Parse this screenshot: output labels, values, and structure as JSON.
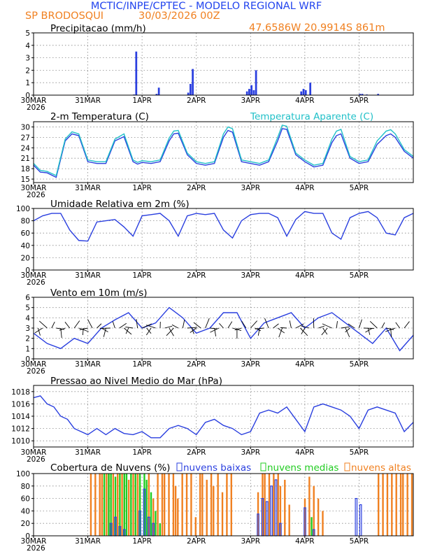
{
  "header": {
    "title": "MCTIC/INPE/CPTEC - MODELO REGIONAL WRF",
    "location": "SP BRODOSQUI",
    "run": "30/03/2026 00Z",
    "coords": "47.6586W 20.9914S 861m"
  },
  "colors": {
    "title_blue": "#2244ee",
    "orange": "#f08020",
    "line_blue": "#2a3fdf",
    "cyan": "#20c0c8",
    "green": "#22cc22",
    "bar_blue": "#2a3fdf"
  },
  "time_axis": {
    "hours": 144,
    "ticks": [
      {
        "hour": 0,
        "label": "30MAR",
        "year": "2026"
      },
      {
        "hour": 24,
        "label": "31MAR",
        "year": ""
      },
      {
        "hour": 48,
        "label": "1APR",
        "year": ""
      },
      {
        "hour": 72,
        "label": "2APR",
        "year": ""
      },
      {
        "hour": 96,
        "label": "3APR",
        "year": ""
      },
      {
        "hour": 120,
        "label": "4APR",
        "year": ""
      },
      {
        "hour": 144,
        "label": "5APR",
        "year": ""
      }
    ]
  },
  "chart_data": [
    {
      "id": "precip",
      "type": "bar",
      "title": "Precipitacao (mm/h)",
      "ylim": [
        0,
        5
      ],
      "yticks": [
        0,
        1,
        2,
        3,
        4,
        5
      ],
      "x": [
        44,
        45,
        54,
        55,
        68,
        69,
        70,
        94,
        95,
        96,
        97,
        98,
        118,
        119,
        120,
        122,
        144,
        145,
        147,
        152
      ],
      "values": [
        0.05,
        3.5,
        0.1,
        0.6,
        0.2,
        0.9,
        2.1,
        0.3,
        0.5,
        0.8,
        0.4,
        2.0,
        0.3,
        0.5,
        0.4,
        1.0,
        0.1,
        0.1,
        0.05,
        0.1
      ]
    },
    {
      "id": "temp",
      "type": "line",
      "title": "2-m Temperatura (C)",
      "legend": [
        "Temperatura Aparente (C)"
      ],
      "ylim": [
        14,
        31.5
      ],
      "yticks": [
        15,
        18,
        21,
        24,
        27,
        30
      ],
      "x": [
        0,
        3,
        6,
        10,
        14,
        17,
        20,
        24,
        28,
        32,
        36,
        40,
        44,
        46,
        48,
        52,
        56,
        60,
        62,
        64,
        68,
        72,
        76,
        80,
        84,
        86,
        88,
        92,
        96,
        100,
        104,
        108,
        110,
        112,
        116,
        120,
        124,
        128,
        132,
        134,
        136,
        140,
        144,
        148,
        152,
        156,
        158,
        160,
        164,
        168
      ],
      "series": [
        {
          "name": "Temperatura (C)",
          "values": [
            19,
            17,
            16.8,
            15.5,
            26,
            28,
            27.5,
            20,
            19.5,
            19.5,
            26,
            27.2,
            20,
            19.3,
            19.8,
            19.5,
            20,
            26,
            28,
            28.2,
            22,
            19.5,
            19,
            19.5,
            27,
            29,
            28.5,
            20,
            19.5,
            19,
            20,
            26,
            29.5,
            29.3,
            22,
            20,
            18.5,
            19,
            25.5,
            27.5,
            28,
            21,
            19.5,
            20,
            25,
            27.5,
            28,
            27,
            23,
            21
          ]
        },
        {
          "name": "Temperatura Aparente (C)",
          "values": [
            19.5,
            17.5,
            17.2,
            16,
            26.5,
            28.6,
            28,
            20.5,
            20,
            20,
            26.5,
            28,
            20.5,
            19.8,
            20.3,
            20,
            20.5,
            26.8,
            28.8,
            29,
            22.5,
            20,
            19.5,
            20,
            28,
            30,
            29.5,
            20.5,
            20,
            19.5,
            20.5,
            27,
            30.5,
            30.2,
            22.5,
            20.5,
            19,
            19.5,
            26.5,
            28.8,
            29.3,
            21.5,
            20,
            20.5,
            26,
            28.8,
            29.2,
            28,
            23.5,
            21.5
          ]
        }
      ]
    },
    {
      "id": "rh",
      "type": "line",
      "title": "Umidade Relativa em 2m (%)",
      "ylim": [
        0,
        100
      ],
      "yticks": [
        0,
        20,
        40,
        60,
        80,
        100
      ],
      "x": [
        0,
        4,
        8,
        12,
        16,
        20,
        24,
        28,
        32,
        36,
        40,
        44,
        48,
        52,
        56,
        60,
        64,
        68,
        72,
        76,
        80,
        84,
        88,
        92,
        96,
        100,
        104,
        108,
        112,
        116,
        120,
        124,
        128,
        132,
        136,
        140,
        144,
        148,
        152,
        156,
        160,
        164,
        168
      ],
      "series": [
        {
          "name": "UR",
          "values": [
            80,
            88,
            92,
            92,
            65,
            48,
            47,
            78,
            80,
            82,
            70,
            55,
            88,
            90,
            92,
            80,
            55,
            88,
            92,
            90,
            92,
            65,
            52,
            80,
            90,
            92,
            92,
            85,
            55,
            82,
            95,
            92,
            92,
            60,
            50,
            85,
            92,
            95,
            85,
            60,
            57,
            85,
            92
          ]
        }
      ]
    },
    {
      "id": "wind",
      "type": "line",
      "title": "Vento em 10m (m/s)",
      "ylim": [
        0,
        6
      ],
      "yticks": [
        0,
        1,
        2,
        3,
        4,
        5,
        6
      ],
      "x": [
        0,
        6,
        12,
        18,
        24,
        30,
        36,
        42,
        48,
        54,
        60,
        66,
        72,
        78,
        84,
        90,
        96,
        102,
        108,
        114,
        120,
        126,
        132,
        138,
        144,
        150,
        156,
        162,
        168
      ],
      "series": [
        {
          "name": "Vento (m/s)",
          "values": [
            2.5,
            1.5,
            1.0,
            2.0,
            1.5,
            3.0,
            3.8,
            4.5,
            3.0,
            3.5,
            5.0,
            4.0,
            2.5,
            3.0,
            4.5,
            4.5,
            2.0,
            3.5,
            4.0,
            4.5,
            3.0,
            4.0,
            4.5,
            3.5,
            2.5,
            1.5,
            3.0,
            0.8,
            2.3
          ]
        }
      ]
    },
    {
      "id": "pressure",
      "type": "line",
      "title": "Pressao ao Nivel Medio do Mar (hPa)",
      "ylim": [
        1009,
        1019
      ],
      "yticks": [
        1010,
        1012,
        1014,
        1016,
        1018
      ],
      "x": [
        0,
        3,
        6,
        9,
        12,
        15,
        18,
        21,
        24,
        28,
        32,
        36,
        40,
        44,
        48,
        52,
        56,
        60,
        64,
        68,
        72,
        76,
        80,
        84,
        88,
        92,
        96,
        100,
        104,
        108,
        112,
        116,
        120,
        124,
        128,
        132,
        136,
        140,
        144,
        148,
        152,
        156,
        160,
        164,
        168
      ],
      "series": [
        {
          "name": "PNMM",
          "values": [
            1017,
            1017.3,
            1016,
            1015.5,
            1014,
            1013.5,
            1012,
            1011.5,
            1011,
            1012,
            1011,
            1012,
            1011.2,
            1011,
            1011.5,
            1010.5,
            1010.5,
            1012,
            1012.5,
            1012,
            1011,
            1013,
            1013.5,
            1012.5,
            1012,
            1011,
            1011.5,
            1014.5,
            1015,
            1014.5,
            1015.5,
            1013.5,
            1011.5,
            1015.5,
            1016,
            1015.5,
            1015,
            1014,
            1012,
            1015,
            1015.5,
            1015,
            1014.5,
            1011.5,
            1013
          ]
        }
      ]
    },
    {
      "id": "clouds",
      "type": "bar",
      "title": "Cobertura de Nuvens (%)",
      "legend": [
        "nuvens baixas",
        "nuvens medias",
        "nuvens altas"
      ],
      "ylim": [
        0,
        100
      ],
      "yticks": [
        0,
        20,
        40,
        60,
        80,
        100
      ],
      "x_start": 24,
      "x_end": 168,
      "series": [
        {
          "name": "nuvens altas",
          "values": [
            0,
            100,
            0,
            100,
            0,
            100,
            100,
            0,
            100,
            100,
            0,
            100,
            0,
            100,
            0,
            100,
            100,
            0,
            90,
            0,
            100,
            0,
            100,
            80,
            0,
            70,
            0,
            100,
            0,
            60,
            0,
            100,
            0,
            100,
            100,
            0,
            100,
            0,
            100,
            80,
            60,
            0,
            100,
            0,
            100,
            0,
            100,
            0,
            30,
            0,
            100,
            100,
            0,
            90,
            0,
            100,
            80,
            0,
            100,
            0,
            70,
            0,
            100,
            0,
            100,
            0,
            0,
            0,
            0,
            0,
            0,
            0,
            0,
            0,
            0,
            0,
            70,
            0,
            100,
            100,
            0,
            100,
            0,
            100,
            0,
            100,
            80,
            0,
            90,
            0,
            50,
            0,
            0,
            0,
            0,
            0,
            0,
            60,
            0,
            95,
            0,
            80,
            0,
            60,
            0,
            40,
            0,
            0,
            0,
            0,
            0,
            0,
            0,
            0,
            0,
            0,
            0,
            0,
            0,
            0,
            0,
            0,
            0,
            0,
            0,
            0,
            0,
            0,
            0,
            0,
            100,
            0,
            100,
            0,
            100,
            0,
            100,
            0,
            100,
            0,
            100,
            100,
            0,
            100,
            0,
            100
          ]
        },
        {
          "name": "nuvens medias",
          "values": [
            0,
            0,
            0,
            0,
            0,
            0,
            0,
            100,
            0,
            100,
            100,
            0,
            95,
            0,
            100,
            0,
            100,
            100,
            0,
            100,
            0,
            100,
            0,
            100,
            0,
            100,
            90,
            0,
            70,
            0,
            40,
            0,
            20,
            0,
            0,
            0,
            0,
            0,
            0,
            0,
            0,
            0,
            0,
            0,
            0,
            0,
            0,
            0,
            0,
            0,
            0,
            0,
            0,
            0,
            0,
            0,
            0,
            0,
            0,
            0,
            0,
            0,
            0,
            0,
            0,
            0,
            0,
            0,
            0,
            0,
            0,
            0,
            0,
            0,
            0,
            0,
            0,
            0,
            0,
            0,
            0,
            0,
            0,
            0,
            0,
            0,
            0,
            0,
            0,
            0,
            0,
            0,
            0,
            0,
            0,
            0,
            0,
            0,
            0,
            0,
            30,
            0,
            0,
            0,
            0,
            0,
            0,
            0,
            0,
            0,
            0,
            0,
            0,
            0,
            0,
            0,
            0,
            0,
            0,
            0,
            0,
            0,
            0,
            0,
            0,
            0,
            0,
            0,
            0,
            0,
            0,
            0,
            0,
            0,
            0,
            0,
            0,
            0,
            0,
            0,
            0,
            0,
            0,
            0,
            0
          ]
        },
        {
          "name": "nuvens baixas",
          "values": [
            0,
            0,
            0,
            0,
            0,
            0,
            0,
            0,
            0,
            0,
            20,
            0,
            30,
            0,
            15,
            0,
            10,
            0,
            0,
            0,
            0,
            0,
            0,
            40,
            0,
            75,
            0,
            30,
            0,
            20,
            0,
            0,
            0,
            0,
            0,
            0,
            0,
            0,
            0,
            0,
            0,
            0,
            0,
            0,
            0,
            0,
            0,
            0,
            0,
            0,
            0,
            0,
            0,
            0,
            0,
            0,
            0,
            0,
            0,
            0,
            0,
            0,
            0,
            0,
            0,
            0,
            0,
            0,
            0,
            0,
            0,
            0,
            0,
            0,
            0,
            0,
            35,
            0,
            60,
            0,
            55,
            0,
            80,
            0,
            90,
            0,
            20,
            0,
            0,
            0,
            0,
            0,
            0,
            0,
            0,
            0,
            0,
            45,
            0,
            0,
            0,
            10,
            0,
            0,
            0,
            0,
            0,
            0,
            0,
            0,
            0,
            0,
            0,
            0,
            0,
            0,
            0,
            0,
            0,
            0,
            60,
            0,
            50,
            0,
            0,
            0,
            0,
            0,
            0,
            0,
            0,
            0,
            0,
            0,
            0,
            0,
            0,
            0,
            0,
            0,
            0,
            0,
            0,
            0,
            0
          ]
        }
      ]
    }
  ]
}
